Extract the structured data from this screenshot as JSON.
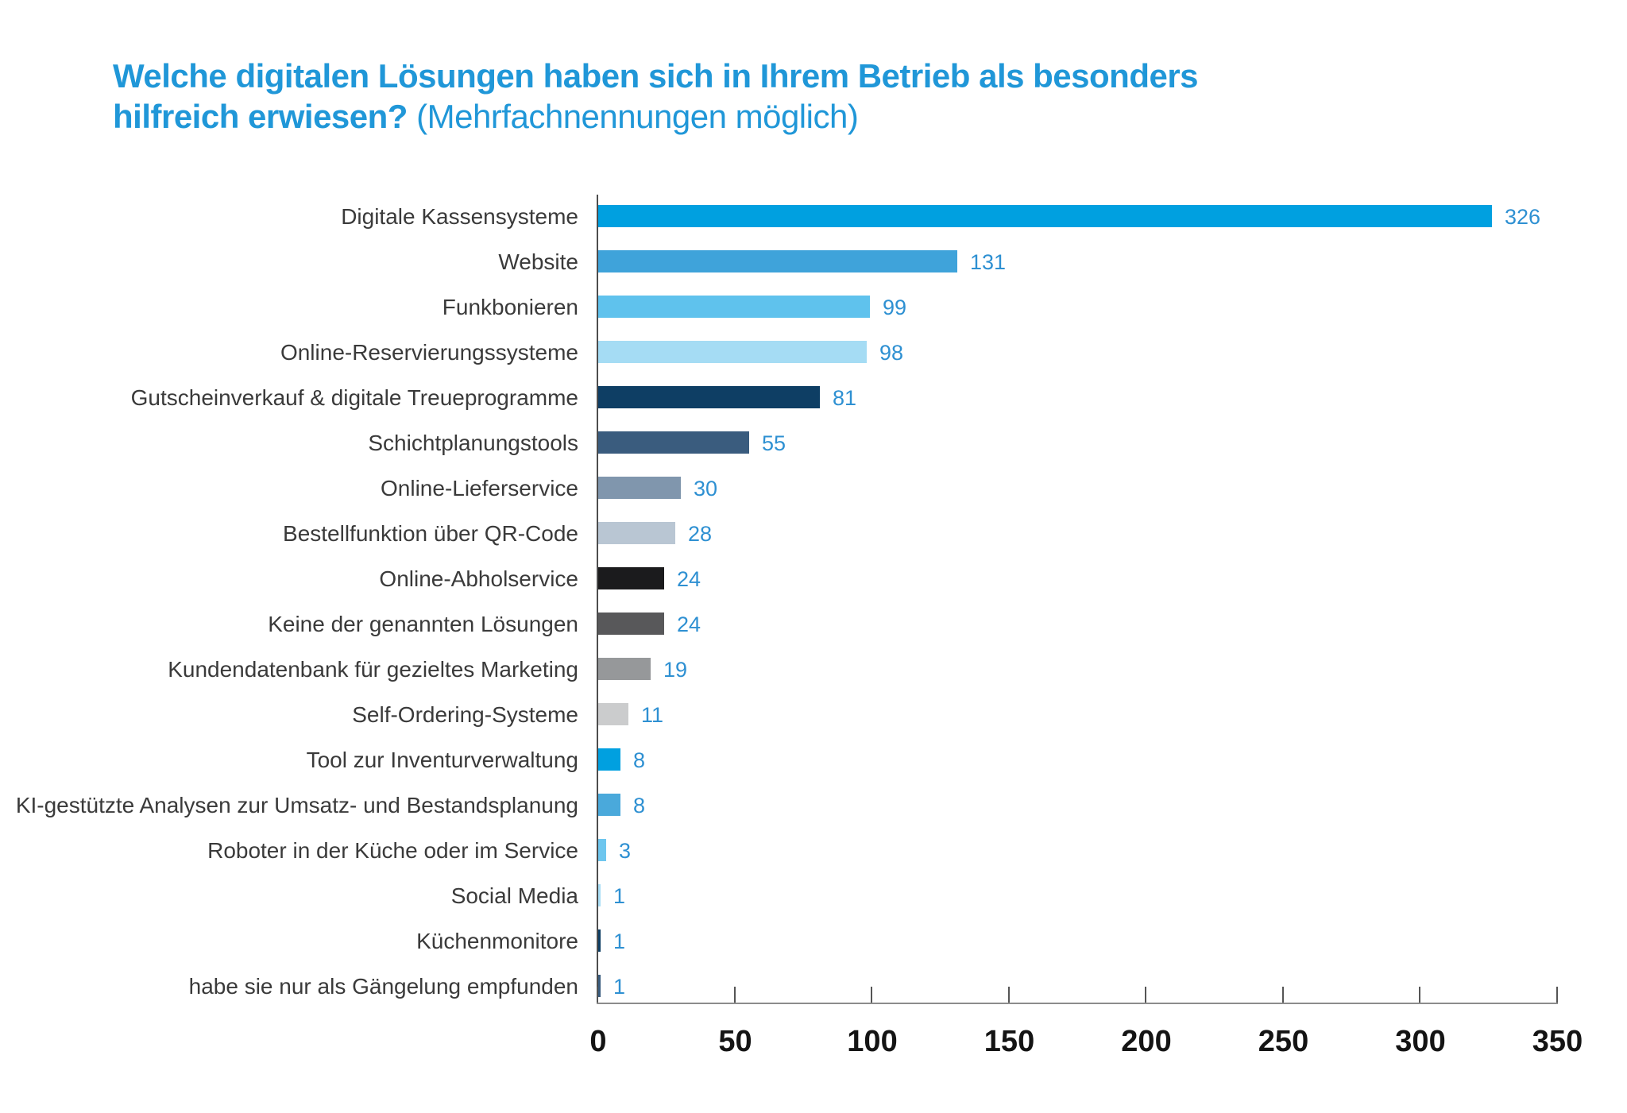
{
  "title": {
    "line1_bold": "Welche digitalen Lösungen haben sich in Ihrem Betrieb als besonders",
    "line2_bold": "hilfreich erwiesen?",
    "line2_normal": " (Mehrfachnennungen möglich)"
  },
  "chart_data": {
    "type": "bar",
    "orientation": "horizontal",
    "title": "Welche digitalen Lösungen haben sich in Ihrem Betrieb als besonders hilfreich erwiesen? (Mehrfachnennungen möglich)",
    "categories": [
      "Digitale Kassensysteme",
      "Website",
      "Funkbonieren",
      "Online-Reservierungssysteme",
      "Gutscheinverkauf & digitale Treueprogramme",
      "Schichtplanungstools",
      "Online-Lieferservice",
      "Bestellfunktion über QR-Code",
      "Online-Abholservice",
      "Keine der genannten Lösungen",
      "Kundendatenbank für gezieltes Marketing",
      "Self-Ordering-Systeme",
      "Tool zur Inventurverwaltung",
      "KI-gestützte Analysen zur Umsatz- und Bestandsplanung",
      "Roboter in der Küche oder im Service",
      "Social Media",
      "Küchenmonitore",
      "habe sie nur als Gängelung empfunden"
    ],
    "values": [
      326,
      131,
      99,
      98,
      81,
      55,
      30,
      28,
      24,
      24,
      19,
      11,
      8,
      8,
      3,
      1,
      1,
      1
    ],
    "bar_colors": [
      "#00a0e0",
      "#3fa3da",
      "#5fc2ed",
      "#a5dcf4",
      "#0e3e64",
      "#3a5c7e",
      "#8096ad",
      "#b9c6d3",
      "#1b1b1d",
      "#58585a",
      "#96989a",
      "#cbcccd",
      "#00a0e0",
      "#4aa9db",
      "#6ec6ee",
      "#abdff6",
      "#0e3e64",
      "#3a5c7e"
    ],
    "xlabel": "",
    "ylabel": "",
    "x_ticks": [
      0,
      50,
      100,
      150,
      200,
      250,
      300,
      350
    ],
    "xlim": [
      0,
      350
    ],
    "grid": false,
    "legend": false,
    "value_labels": true
  },
  "style": {
    "title_color": "#2097d8",
    "category_label_color": "#3a3a3a",
    "value_label_color": "#2e90d2",
    "tick_label_color": "#141414",
    "x_axis_color": "#8c8c8c",
    "y_axis_color": "#4d4d4d",
    "tick_color": "#555555"
  }
}
